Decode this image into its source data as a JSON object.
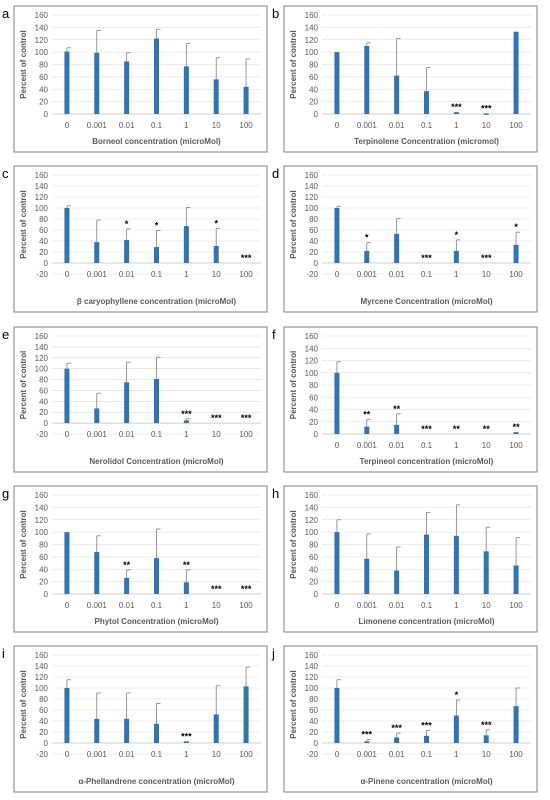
{
  "chart_data": [
    {
      "panel": "a",
      "type": "bar",
      "xlabel": "Borneol concentration (microMol)",
      "ylabel": "Percent of control",
      "categories": [
        "0",
        "0.001",
        "0.01",
        "0.1",
        "1",
        "10",
        "100"
      ],
      "values": [
        101,
        99,
        85,
        122,
        77,
        56,
        44
      ],
      "errors": [
        6,
        36,
        14,
        15,
        37,
        35,
        45
      ],
      "significance": [
        "",
        "",
        "",
        "",
        "",
        "",
        ""
      ],
      "ylim": [
        0,
        160
      ],
      "yticks": [
        0,
        20,
        40,
        60,
        80,
        100,
        120,
        140,
        160
      ]
    },
    {
      "panel": "b",
      "type": "bar",
      "xlabel": "Terpinolene Concentration (micromol)",
      "ylabel": "Percent of control",
      "categories": [
        "0",
        "0.001",
        "0.01",
        "0.1",
        "1",
        "10",
        "100"
      ],
      "values": [
        100,
        110,
        62,
        37,
        3,
        1,
        133
      ],
      "errors": [
        0,
        5,
        60,
        38,
        0,
        0,
        0
      ],
      "significance": [
        "",
        "",
        "",
        "",
        "***",
        "***",
        ""
      ],
      "ylim": [
        0,
        160
      ],
      "yticks": [
        0,
        20,
        40,
        60,
        80,
        100,
        120,
        140,
        160
      ]
    },
    {
      "panel": "c",
      "type": "bar",
      "xlabel": "β caryophyllene concentration (microMol)",
      "ylabel": "Percent of control",
      "categories": [
        "0",
        "0.001",
        "0.01",
        "0.1",
        "1",
        "10",
        "100"
      ],
      "values": [
        100,
        38,
        42,
        29,
        67,
        31,
        0
      ],
      "errors": [
        4,
        40,
        20,
        30,
        34,
        32,
        0
      ],
      "significance": [
        "",
        "",
        "*",
        "*",
        "",
        "*",
        "***"
      ],
      "ylim": [
        -20,
        160
      ],
      "yticks": [
        -20,
        0,
        20,
        40,
        60,
        80,
        100,
        120,
        140,
        160
      ]
    },
    {
      "panel": "d",
      "type": "bar",
      "xlabel": "Myrcene Concentration (microMol)",
      "ylabel": "Percent of control",
      "categories": [
        "0",
        "0.001",
        "0.01",
        "0.1",
        "1",
        "10",
        "100"
      ],
      "values": [
        100,
        22,
        53,
        0,
        22,
        0,
        33
      ],
      "errors": [
        3,
        15,
        28,
        0,
        20,
        0,
        23
      ],
      "significance": [
        "",
        "*",
        "",
        "***",
        "*",
        "***",
        "*"
      ],
      "ylim": [
        -20,
        160
      ],
      "yticks": [
        -20,
        0,
        20,
        40,
        60,
        80,
        100,
        120,
        140,
        160
      ]
    },
    {
      "panel": "e",
      "type": "bar",
      "xlabel": "Nerolidol Concentration (microMol)",
      "ylabel": "Percent of control",
      "categories": [
        "0",
        "0.001",
        "0.01",
        "0.1",
        "1",
        "10",
        "100"
      ],
      "values": [
        100,
        27,
        75,
        81,
        5,
        0,
        0
      ],
      "errors": [
        10,
        28,
        37,
        40,
        3,
        0,
        0
      ],
      "significance": [
        "",
        "",
        "",
        "",
        "***",
        "***",
        "***"
      ],
      "ylim": [
        -20,
        160
      ],
      "yticks": [
        -20,
        0,
        20,
        40,
        60,
        80,
        100,
        120,
        140,
        160
      ]
    },
    {
      "panel": "f",
      "type": "bar",
      "xlabel": "Terpineol concentration (microMol)",
      "ylabel": "Percent of control",
      "categories": [
        "0",
        "0.001",
        "0.01",
        "0.1",
        "1",
        "10",
        "100"
      ],
      "values": [
        100,
        12,
        15,
        0,
        0,
        0,
        3
      ],
      "errors": [
        18,
        12,
        18,
        0,
        0,
        0,
        0
      ],
      "significance": [
        "",
        "**",
        "**",
        "***",
        "**",
        "**",
        "**"
      ],
      "ylim": [
        0,
        160
      ],
      "yticks": [
        0,
        20,
        40,
        60,
        80,
        100,
        120,
        140,
        160
      ]
    },
    {
      "panel": "g",
      "type": "bar",
      "xlabel": "Phytol Concentration (microMol)",
      "ylabel": "Percent of control",
      "categories": [
        "0",
        "0.001",
        "0.01",
        "0.1",
        "1",
        "10",
        "100"
      ],
      "values": [
        100,
        68,
        26,
        58,
        19,
        0,
        0
      ],
      "errors": [
        0,
        26,
        13,
        47,
        20,
        0,
        0
      ],
      "significance": [
        "",
        "",
        "**",
        "",
        "**",
        "***",
        "***"
      ],
      "ylim": [
        0,
        160
      ],
      "yticks": [
        0,
        20,
        40,
        60,
        80,
        100,
        120,
        140,
        160
      ]
    },
    {
      "panel": "h",
      "type": "bar",
      "xlabel": "Limonene concentration (microMol)",
      "ylabel": "Percent of control",
      "categories": [
        "0",
        "0.001",
        "0.01",
        "0.1",
        "1",
        "10",
        "100"
      ],
      "values": [
        100,
        57,
        38,
        96,
        94,
        69,
        46
      ],
      "errors": [
        20,
        40,
        38,
        36,
        50,
        39,
        45
      ],
      "significance": [
        "",
        "",
        "",
        "",
        "",
        "",
        ""
      ],
      "ylim": [
        0,
        160
      ],
      "yticks": [
        0,
        20,
        40,
        60,
        80,
        100,
        120,
        140,
        160
      ]
    },
    {
      "panel": "i",
      "type": "bar",
      "xlabel": "α-Phellandrene concentration (microMol)",
      "ylabel": "Percent of control",
      "categories": [
        "0",
        "0.001",
        "0.01",
        "0.1",
        "1",
        "10",
        "100"
      ],
      "values": [
        100,
        44,
        44,
        35,
        3,
        52,
        103
      ],
      "errors": [
        15,
        47,
        47,
        37,
        0,
        52,
        35
      ],
      "significance": [
        "",
        "",
        "",
        "",
        "***",
        "",
        ""
      ],
      "ylim": [
        -20,
        160
      ],
      "yticks": [
        -20,
        0,
        20,
        40,
        60,
        80,
        100,
        120,
        140,
        160
      ]
    },
    {
      "panel": "j",
      "type": "bar",
      "xlabel": "α-Pinene concentration (microMol)",
      "ylabel": "Percent of control",
      "categories": [
        "0",
        "0.001",
        "0.01",
        "0.1",
        "1",
        "10",
        "100"
      ],
      "values": [
        100,
        3,
        10,
        13,
        50,
        14,
        67
      ],
      "errors": [
        15,
        3,
        8,
        10,
        28,
        10,
        33
      ],
      "significance": [
        "",
        "***",
        "***",
        "***",
        "*",
        "***",
        ""
      ],
      "ylim": [
        -20,
        160
      ],
      "yticks": [
        -20,
        0,
        20,
        40,
        60,
        80,
        100,
        120,
        140,
        160
      ]
    }
  ]
}
